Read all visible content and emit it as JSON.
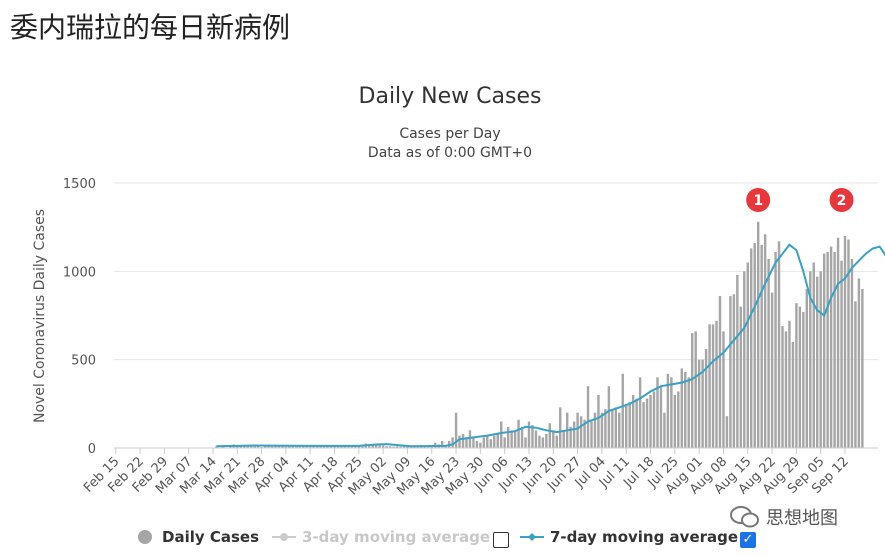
{
  "page": {
    "heading": "委内瑞拉的每日新病例"
  },
  "chart": {
    "title": "Daily New Cases",
    "subtitle": "Cases per Day",
    "subtitle2": "Data as of 0:00 GMT+0"
  },
  "watermark": {
    "text": "思想地图"
  },
  "legend": {
    "daily_cases": "Daily Cases",
    "three_day": "3-day moving average",
    "seven_day": "7-day moving average"
  },
  "colors": {
    "bars": "#a6a6a6",
    "line": "#3aa1c3",
    "marker": "#e8363b",
    "grid": "#e6e6e6"
  },
  "chart_data": {
    "type": "bar",
    "title": "Daily New Cases",
    "subtitle": "Cases per Day / Data as of 0:00 GMT+0",
    "ylabel": "Novel Coronavirus Daily Cases",
    "xlabel": "",
    "ylim": [
      0,
      1500
    ],
    "yticks": [
      0,
      500,
      1000,
      1500
    ],
    "x_tick_labels": [
      "Feb 15",
      "Feb 22",
      "Feb 29",
      "Mar 07",
      "Mar 14",
      "Mar 21",
      "Mar 28",
      "Apr 04",
      "Apr 11",
      "Apr 18",
      "Apr 25",
      "May 02",
      "May 09",
      "May 16",
      "May 23",
      "May 30",
      "Jun 06",
      "Jun 13",
      "Jun 20",
      "Jun 27",
      "Jul 04",
      "Jul 11",
      "Jul 18",
      "Jul 25",
      "Aug 01",
      "Aug 08",
      "Aug 15",
      "Aug 22",
      "Aug 29",
      "Sep 05",
      "Sep 12"
    ],
    "annotations": [
      {
        "label": "1",
        "date_index": 185
      },
      {
        "label": "2",
        "date_index": 209
      }
    ],
    "series": [
      {
        "name": "Daily Cases",
        "kind": "bar",
        "values": [
          0,
          0,
          0,
          0,
          0,
          0,
          0,
          0,
          0,
          0,
          0,
          0,
          0,
          0,
          0,
          0,
          0,
          0,
          0,
          0,
          0,
          0,
          0,
          0,
          0,
          0,
          0,
          0,
          0,
          10,
          0,
          15,
          0,
          10,
          20,
          10,
          15,
          10,
          10,
          15,
          10,
          10,
          5,
          10,
          10,
          8,
          12,
          10,
          10,
          8,
          12,
          10,
          10,
          8,
          10,
          12,
          10,
          10,
          8,
          10,
          12,
          8,
          10,
          12,
          10,
          8,
          10,
          10,
          10,
          12,
          15,
          20,
          25,
          18,
          20,
          15,
          20,
          15,
          10,
          10,
          8,
          10,
          8,
          10,
          10,
          12,
          8,
          10,
          15,
          10,
          12,
          15,
          30,
          20,
          40,
          15,
          40,
          60,
          200,
          70,
          80,
          60,
          100,
          60,
          40,
          30,
          60,
          70,
          50,
          70,
          80,
          150,
          60,
          120,
          100,
          100,
          160,
          120,
          60,
          150,
          130,
          100,
          70,
          60,
          80,
          140,
          100,
          70,
          230,
          100,
          200,
          120,
          150,
          200,
          180,
          160,
          350,
          150,
          200,
          300,
          200,
          220,
          350,
          220,
          230,
          200,
          420,
          250,
          260,
          300,
          280,
          400,
          260,
          280,
          300,
          320,
          400,
          350,
          200,
          420,
          400,
          300,
          320,
          450,
          430,
          400,
          650,
          660,
          500,
          500,
          560,
          700,
          700,
          720,
          860,
          660,
          180,
          860,
          870,
          980,
          800,
          1000,
          1050,
          1130,
          1160,
          1280,
          1150,
          1210,
          1070,
          880,
          1110,
          1170,
          690,
          660,
          720,
          600,
          820,
          800,
          770,
          900,
          1000,
          1050,
          970,
          1000,
          1100,
          1110,
          1140,
          1110,
          1190,
          1060,
          1200,
          1180,
          1070,
          830,
          960,
          900
        ],
        "start": "Feb 15"
      },
      {
        "name": "7-day moving average",
        "kind": "line",
        "points": [
          [
            29,
            10
          ],
          [
            35,
            12
          ],
          [
            40,
            14
          ],
          [
            50,
            13
          ],
          [
            60,
            12
          ],
          [
            70,
            12
          ],
          [
            75,
            20
          ],
          [
            78,
            22
          ],
          [
            85,
            10
          ],
          [
            95,
            12
          ],
          [
            97,
            20
          ],
          [
            99,
            50
          ],
          [
            103,
            60
          ],
          [
            107,
            70
          ],
          [
            111,
            85
          ],
          [
            115,
            95
          ],
          [
            118,
            120
          ],
          [
            121,
            115
          ],
          [
            124,
            100
          ],
          [
            127,
            90
          ],
          [
            130,
            100
          ],
          [
            133,
            110
          ],
          [
            136,
            150
          ],
          [
            139,
            170
          ],
          [
            142,
            210
          ],
          [
            145,
            230
          ],
          [
            148,
            250
          ],
          [
            151,
            280
          ],
          [
            154,
            320
          ],
          [
            157,
            350
          ],
          [
            160,
            360
          ],
          [
            163,
            370
          ],
          [
            166,
            390
          ],
          [
            169,
            430
          ],
          [
            172,
            490
          ],
          [
            175,
            540
          ],
          [
            178,
            610
          ],
          [
            181,
            680
          ],
          [
            184,
            800
          ],
          [
            187,
            930
          ],
          [
            190,
            1050
          ],
          [
            192,
            1100
          ],
          [
            194,
            1150
          ],
          [
            196,
            1120
          ],
          [
            198,
            1000
          ],
          [
            200,
            850
          ],
          [
            202,
            780
          ],
          [
            204,
            750
          ],
          [
            206,
            850
          ],
          [
            208,
            930
          ],
          [
            210,
            960
          ],
          [
            212,
            1020
          ],
          [
            214,
            1060
          ],
          [
            216,
            1100
          ],
          [
            218,
            1130
          ],
          [
            220,
            1140
          ],
          [
            222,
            1080
          ],
          [
            224,
            1040
          ]
        ]
      }
    ]
  }
}
